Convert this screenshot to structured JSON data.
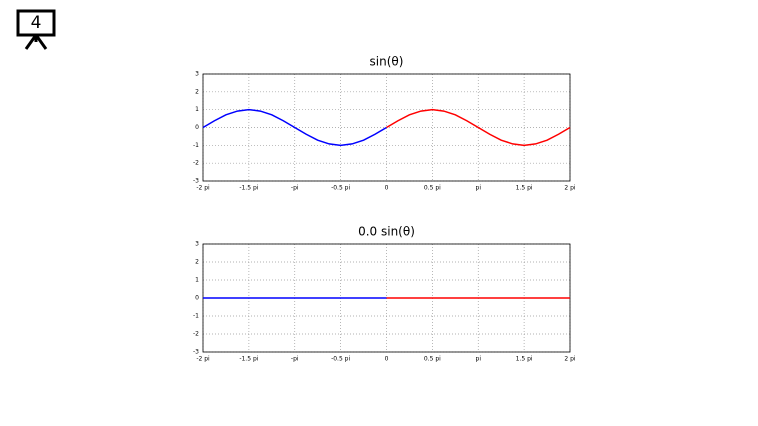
{
  "slide_number": "4",
  "chart_data": [
    {
      "type": "line",
      "title": "sin(θ)",
      "x": [
        -6.283,
        -5.89,
        -5.498,
        -5.105,
        -4.712,
        -4.32,
        -3.927,
        -3.534,
        -3.142,
        -2.749,
        -2.356,
        -1.963,
        -1.571,
        -1.178,
        -0.785,
        -0.393,
        0,
        0.393,
        0.785,
        1.178,
        1.571,
        1.963,
        2.356,
        2.749,
        3.142,
        3.534,
        3.927,
        4.32,
        4.712,
        5.105,
        5.498,
        5.89,
        6.283
      ],
      "series": [
        {
          "color": "#0000ff",
          "values": [
            0,
            0.38,
            0.71,
            0.92,
            1,
            0.92,
            0.71,
            0.38,
            0,
            -0.38,
            -0.71,
            -0.92,
            -1,
            -0.92,
            -0.71,
            -0.38,
            0,
            null,
            null,
            null,
            null,
            null,
            null,
            null,
            null,
            null,
            null,
            null,
            null,
            null,
            null,
            null,
            null
          ]
        },
        {
          "color": "#ff0000",
          "values": [
            null,
            null,
            null,
            null,
            null,
            null,
            null,
            null,
            null,
            null,
            null,
            null,
            null,
            null,
            null,
            null,
            0,
            0.38,
            0.71,
            0.92,
            1,
            0.92,
            0.71,
            0.38,
            0,
            -0.38,
            -0.71,
            -0.92,
            -1,
            -0.92,
            -0.71,
            -0.38,
            0
          ]
        }
      ],
      "xlim": [
        -6.283,
        6.283
      ],
      "xticks": [
        {
          "value": -6.283,
          "label": "-2 pi"
        },
        {
          "value": -4.712,
          "label": "-1.5 pi"
        },
        {
          "value": -3.142,
          "label": "-pi"
        },
        {
          "value": -1.571,
          "label": "-0.5 pi"
        },
        0,
        {
          "value": 1.571,
          "label": "0.5 pi"
        },
        {
          "value": 3.142,
          "label": "pi"
        },
        {
          "value": 4.712,
          "label": "1.5 pi"
        },
        {
          "value": 6.283,
          "label": "2 pi"
        }
      ],
      "ylim": [
        -3,
        3
      ],
      "yticks": [
        -3,
        -2,
        -1,
        0,
        1,
        2,
        3
      ],
      "grid": true
    },
    {
      "type": "line",
      "title": "0.0 sin(θ)",
      "x": [
        -6.283,
        -5.89,
        -5.498,
        -5.105,
        -4.712,
        -4.32,
        -3.927,
        -3.534,
        -3.142,
        -2.749,
        -2.356,
        -1.963,
        -1.571,
        -1.178,
        -0.785,
        -0.393,
        0,
        0.393,
        0.785,
        1.178,
        1.571,
        1.963,
        2.356,
        2.749,
        3.142,
        3.534,
        3.927,
        4.32,
        4.712,
        5.105,
        5.498,
        5.89,
        6.283
      ],
      "series": [
        {
          "color": "#0000ff",
          "values": [
            0,
            0,
            0,
            0,
            0,
            0,
            0,
            0,
            0,
            0,
            0,
            0,
            0,
            0,
            0,
            0,
            0,
            null,
            null,
            null,
            null,
            null,
            null,
            null,
            null,
            null,
            null,
            null,
            null,
            null,
            null,
            null,
            null
          ]
        },
        {
          "color": "#ff0000",
          "values": [
            null,
            null,
            null,
            null,
            null,
            null,
            null,
            null,
            null,
            null,
            null,
            null,
            null,
            null,
            null,
            null,
            0,
            0,
            0,
            0,
            0,
            0,
            0,
            0,
            0,
            0,
            0,
            0,
            0,
            0,
            0,
            0,
            0
          ]
        }
      ],
      "xlim": [
        -6.283,
        6.283
      ],
      "xticks": [
        {
          "value": -6.283,
          "label": "-2 pi"
        },
        {
          "value": -4.712,
          "label": "-1.5 pi"
        },
        {
          "value": -3.142,
          "label": "-pi"
        },
        {
          "value": -1.571,
          "label": "-0.5 pi"
        },
        0,
        {
          "value": 1.571,
          "label": "0.5 pi"
        },
        {
          "value": 3.142,
          "label": "pi"
        },
        {
          "value": 4.712,
          "label": "1.5 pi"
        },
        {
          "value": 6.283,
          "label": "2 pi"
        }
      ],
      "ylim": [
        -3,
        3
      ],
      "yticks": [
        -3,
        -2,
        -1,
        0,
        1,
        2,
        3
      ],
      "grid": true
    }
  ]
}
